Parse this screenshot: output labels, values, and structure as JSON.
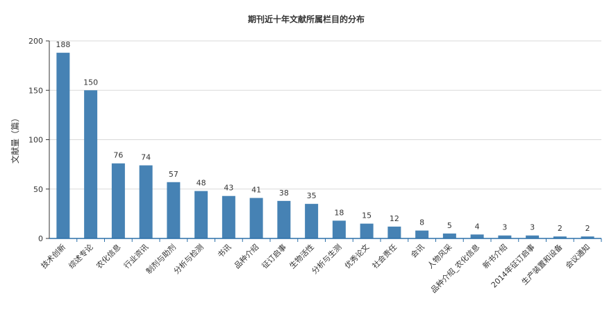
{
  "chart_data": {
    "type": "bar",
    "title": "期刊近十年文献所属栏目的分布",
    "xlabel": "",
    "ylabel": "文献量（篇）",
    "ylim": [
      0,
      200
    ],
    "yticks": [
      0,
      50,
      100,
      150,
      200
    ],
    "grid": true,
    "legend": "none",
    "bar_color": "#4682b4",
    "categories": [
      "技术创新",
      "综述专论",
      "农化信息",
      "行业资讯",
      "制剂与助剂",
      "分析与检测",
      "书讯",
      "品种介绍",
      "征订启事",
      "生物活性",
      "分析与生测",
      "优秀论文",
      "社会责任",
      "会讯",
      "人物风采",
      "品种介绍_农化信息",
      "新书介绍",
      "2014年征订启事",
      "生产装置和设备",
      "会议通知"
    ],
    "values": [
      188,
      150,
      76,
      74,
      57,
      48,
      43,
      41,
      38,
      35,
      18,
      15,
      12,
      8,
      5,
      4,
      3,
      3,
      2,
      2
    ]
  }
}
